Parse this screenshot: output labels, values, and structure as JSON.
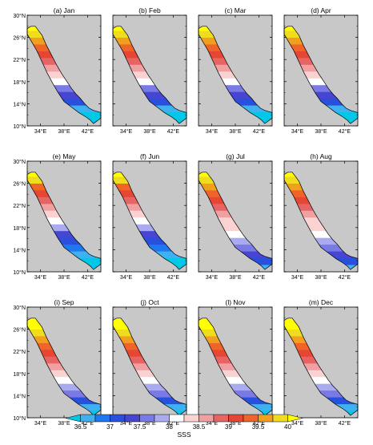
{
  "figure": {
    "panels": [
      {
        "label": "(a) Jan",
        "pattern": "winter"
      },
      {
        "label": "(b) Feb",
        "pattern": "winter"
      },
      {
        "label": "(c) Mar",
        "pattern": "winter"
      },
      {
        "label": "(d) Apr",
        "pattern": "winter"
      },
      {
        "label": "(e) May",
        "pattern": "spring"
      },
      {
        "label": "(f) Jun",
        "pattern": "spring"
      },
      {
        "label": "(g) Jul",
        "pattern": "summer"
      },
      {
        "label": "(h) Aug",
        "pattern": "summer"
      },
      {
        "label": "(i) Sep",
        "pattern": "autumn"
      },
      {
        "label": "(j) Oct",
        "pattern": "autumn"
      },
      {
        "label": "(l) Nov",
        "pattern": "autumn"
      },
      {
        "label": "(m) Dec",
        "pattern": "autumn"
      }
    ],
    "lat_ticks": [
      "10°N",
      "14°N",
      "18°N",
      "22°N",
      "26°N",
      "30°N"
    ],
    "lon_ticks": [
      "34°E",
      "38°E",
      "42°E"
    ],
    "colorbar": {
      "title": "SSS",
      "tick_labels": [
        "36.5",
        "37",
        "37.5",
        "38",
        "38.5",
        "39",
        "39.5",
        "40"
      ],
      "colors": [
        "#00c8e6",
        "#3fb0f0",
        "#1e78f0",
        "#2850dc",
        "#4646d2",
        "#7a7ae6",
        "#aaaaf0",
        "#ffffff",
        "#fad2d2",
        "#f0a0a0",
        "#e66464",
        "#e64632",
        "#f06428",
        "#f0a01e",
        "#f0dc1e",
        "#ffff00"
      ]
    },
    "land_color": "#c8c8c8"
  }
}
